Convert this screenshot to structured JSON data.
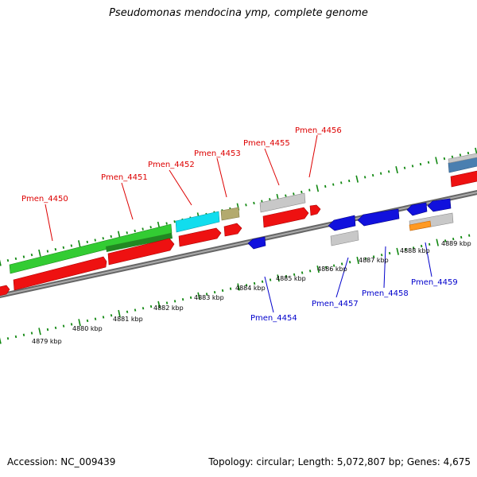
{
  "title": "Pseudomonas mendocina ymp, complete genome",
  "accession": "Accession: NC_009439",
  "summary": "Topology: circular; Length: 5,072,807 bp; Genes: 4,675",
  "kbp_labels": [
    "4879 kbp",
    "4880 kbp",
    "4881 kbp",
    "4882 kbp",
    "4883 kbp",
    "4884 kbp",
    "4885 kbp",
    "4886 kbp",
    "4887 kbp",
    "4888 kbp",
    "4889 kbp"
  ],
  "top_gene_labels": [
    "Pmen_4450",
    "Pmen_4451",
    "Pmen_4452",
    "Pmen_4453",
    "Pmen_4455",
    "Pmen_4456"
  ],
  "bottom_gene_labels": [
    "Pmen_4454",
    "Pmen_4457",
    "Pmen_4458",
    "Pmen_4459"
  ],
  "colors": {
    "forward_gene": "#ee1111",
    "reverse_gene": "#1111dd",
    "backbone": "#888888",
    "tick": "#118811",
    "top_label": "#dd0000",
    "bottom_label": "#0000cc",
    "feature_green": "#33cc33",
    "feature_cyan": "#11ddee",
    "feature_khaki": "#b3aa6e",
    "feature_grey": "#c8c8c8",
    "feature_orange": "#ff9922",
    "feature_steelblue": "#4a7fb0"
  }
}
